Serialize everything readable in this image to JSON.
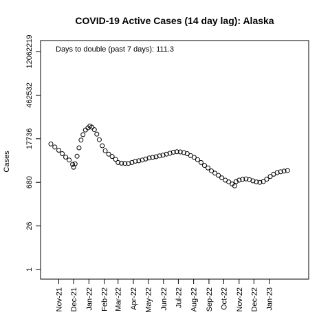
{
  "chart_data": {
    "type": "scatter",
    "title": "COVID-19 Active Cases (14 day lag): Alaska",
    "xlabel": "",
    "ylabel": "Cases",
    "annotation": "Days to double (past 7 days): 111.3",
    "y_scale": "log",
    "ylim": [
      1,
      12062219
    ],
    "yticks": [
      1,
      26,
      680,
      17736,
      462532,
      12062219
    ],
    "ytick_labels": [
      "1",
      "26",
      "680",
      "17736",
      "462532",
      "12062219"
    ],
    "xlim": [
      "2021-10-16",
      "2023-03-01"
    ],
    "xticks": [
      "2021-11-01",
      "2021-12-01",
      "2022-01-01",
      "2022-02-01",
      "2022-03-01",
      "2022-04-01",
      "2022-05-01",
      "2022-06-01",
      "2022-07-01",
      "2022-08-01",
      "2022-09-01",
      "2022-10-01",
      "2022-11-01",
      "2022-12-01",
      "2023-01-01"
    ],
    "xtick_labels": [
      "Nov-21",
      "Dec-21",
      "Jan-22",
      "Feb-22",
      "Mar-22",
      "Apr-22",
      "May-22",
      "Jun-22",
      "Jul-22",
      "Aug-22",
      "Sep-22",
      "Oct-22",
      "Nov-22",
      "Dec-22",
      "Jan-23"
    ],
    "grid": false,
    "legend": "none",
    "point_color": "#000000",
    "last_point_color": "#3a3aa0",
    "series": [
      {
        "points": [
          [
            "2021-10-16",
            12000
          ],
          [
            "2021-10-24",
            9500
          ],
          [
            "2021-11-01",
            7500
          ],
          [
            "2021-11-08",
            5800
          ],
          [
            "2021-11-15",
            4500
          ],
          [
            "2021-11-22",
            3600
          ],
          [
            "2021-11-29",
            2600
          ],
          [
            "2021-12-01",
            2100
          ],
          [
            "2021-12-04",
            2700
          ],
          [
            "2021-12-08",
            4800
          ],
          [
            "2021-12-12",
            9000
          ],
          [
            "2021-12-16",
            16000
          ],
          [
            "2021-12-20",
            24000
          ],
          [
            "2021-12-25",
            34000
          ],
          [
            "2021-12-30",
            40000
          ],
          [
            "2022-01-03",
            46000
          ],
          [
            "2022-01-07",
            42000
          ],
          [
            "2022-01-12",
            35000
          ],
          [
            "2022-01-17",
            25000
          ],
          [
            "2022-01-22",
            16500
          ],
          [
            "2022-01-28",
            10500
          ],
          [
            "2022-02-03",
            7200
          ],
          [
            "2022-02-10",
            5600
          ],
          [
            "2022-02-17",
            4700
          ],
          [
            "2022-02-24",
            3800
          ],
          [
            "2022-03-01",
            3000
          ],
          [
            "2022-03-08",
            2850
          ],
          [
            "2022-03-15",
            2800
          ],
          [
            "2022-03-22",
            2800
          ],
          [
            "2022-03-29",
            3000
          ],
          [
            "2022-04-05",
            3300
          ],
          [
            "2022-04-12",
            3400
          ],
          [
            "2022-04-19",
            3600
          ],
          [
            "2022-04-26",
            3900
          ],
          [
            "2022-05-03",
            4200
          ],
          [
            "2022-05-10",
            4400
          ],
          [
            "2022-05-17",
            4600
          ],
          [
            "2022-05-24",
            4900
          ],
          [
            "2022-05-31",
            5200
          ],
          [
            "2022-06-07",
            5600
          ],
          [
            "2022-06-14",
            6000
          ],
          [
            "2022-06-21",
            6500
          ],
          [
            "2022-06-28",
            6700
          ],
          [
            "2022-07-05",
            6600
          ],
          [
            "2022-07-12",
            6300
          ],
          [
            "2022-07-19",
            5800
          ],
          [
            "2022-07-26",
            5000
          ],
          [
            "2022-08-02",
            4400
          ],
          [
            "2022-08-09",
            3700
          ],
          [
            "2022-08-16",
            3000
          ],
          [
            "2022-08-23",
            2400
          ],
          [
            "2022-08-30",
            2000
          ],
          [
            "2022-09-06",
            1600
          ],
          [
            "2022-09-13",
            1350
          ],
          [
            "2022-09-20",
            1150
          ],
          [
            "2022-09-27",
            950
          ],
          [
            "2022-10-04",
            800
          ],
          [
            "2022-10-11",
            700
          ],
          [
            "2022-10-18",
            600
          ],
          [
            "2022-10-23",
            520
          ],
          [
            "2022-10-26",
            720
          ],
          [
            "2022-11-01",
            800
          ],
          [
            "2022-11-08",
            850
          ],
          [
            "2022-11-15",
            880
          ],
          [
            "2022-11-22",
            830
          ],
          [
            "2022-11-29",
            760
          ],
          [
            "2022-12-06",
            700
          ],
          [
            "2022-12-13",
            680
          ],
          [
            "2022-12-20",
            720
          ],
          [
            "2022-12-27",
            860
          ],
          [
            "2023-01-03",
            1050
          ],
          [
            "2023-01-10",
            1250
          ],
          [
            "2023-01-17",
            1400
          ],
          [
            "2023-01-24",
            1500
          ],
          [
            "2023-01-31",
            1570
          ],
          [
            "2023-02-07",
            1640
          ]
        ]
      }
    ]
  }
}
